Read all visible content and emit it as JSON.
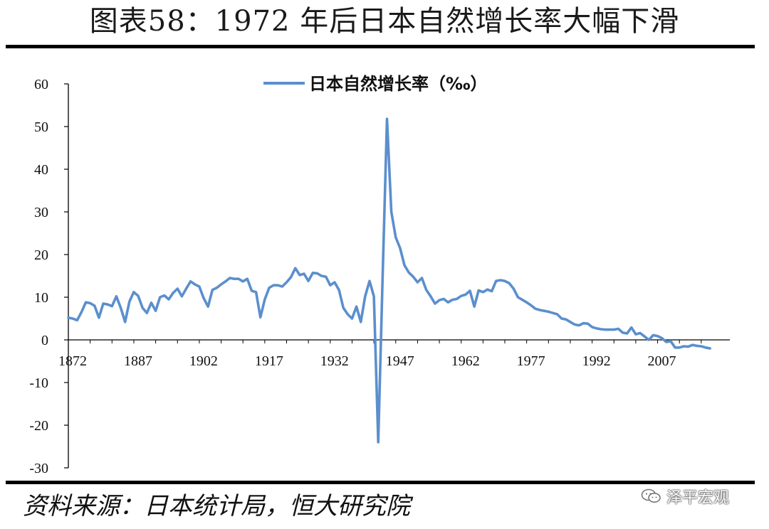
{
  "page": {
    "title": "图表58：1972 年后日本自然增长率大幅下滑",
    "source": "资料来源：日本统计局，恒大研究院",
    "watermark": "泽平宏观",
    "watermark_icon": "wechat-icon"
  },
  "colors": {
    "series": "#5b8fcd",
    "axis": "#000000",
    "rule": "#000000"
  },
  "chart_data": {
    "type": "line",
    "title": "",
    "xlabel": "",
    "ylabel": "",
    "xlim": [
      1872,
      2019
    ],
    "ylim": [
      -30,
      60
    ],
    "grid": false,
    "legend_position": "top-center",
    "x_ticks": [
      "1872",
      "1887",
      "1902",
      "1917",
      "1932",
      "1947",
      "1962",
      "1977",
      "1992",
      "2007"
    ],
    "y_ticks": [
      "60",
      "50",
      "40",
      "30",
      "20",
      "10",
      "0",
      "-10",
      "-20",
      "-30"
    ],
    "series": [
      {
        "name": "日本自然增长率（‰）",
        "x": [
          1872,
          1873,
          1874,
          1875,
          1876,
          1877,
          1878,
          1879,
          1880,
          1881,
          1882,
          1883,
          1884,
          1885,
          1886,
          1887,
          1888,
          1889,
          1890,
          1891,
          1892,
          1893,
          1894,
          1895,
          1896,
          1897,
          1898,
          1899,
          1900,
          1901,
          1902,
          1903,
          1904,
          1905,
          1906,
          1907,
          1908,
          1909,
          1910,
          1911,
          1912,
          1913,
          1914,
          1915,
          1916,
          1917,
          1918,
          1919,
          1920,
          1921,
          1922,
          1923,
          1924,
          1925,
          1926,
          1927,
          1928,
          1929,
          1930,
          1931,
          1932,
          1933,
          1934,
          1935,
          1936,
          1937,
          1938,
          1939,
          1940,
          1941,
          1942,
          1943,
          1944,
          1945,
          1946,
          1947,
          1948,
          1949,
          1950,
          1951,
          1952,
          1953,
          1954,
          1955,
          1956,
          1957,
          1958,
          1959,
          1960,
          1961,
          1962,
          1963,
          1964,
          1965,
          1966,
          1967,
          1968,
          1969,
          1970,
          1971,
          1972,
          1973,
          1974,
          1975,
          1976,
          1977,
          1978,
          1979,
          1980,
          1981,
          1982,
          1983,
          1984,
          1985,
          1986,
          1987,
          1988,
          1989,
          1990,
          1991,
          1992,
          1993,
          1994,
          1995,
          1996,
          1997,
          1998,
          1999,
          2000,
          2001,
          2002,
          2003,
          2004,
          2005,
          2006,
          2007,
          2008,
          2009,
          2010,
          2011,
          2012,
          2013,
          2014,
          2015,
          2016,
          2017,
          2018,
          2019
        ],
        "values": [
          5.2,
          5.0,
          4.6,
          6.5,
          8.8,
          8.6,
          8.0,
          5.2,
          8.5,
          8.3,
          7.9,
          10.2,
          7.5,
          4.2,
          9.0,
          11.2,
          10.3,
          7.5,
          6.3,
          8.7,
          6.8,
          10.0,
          10.4,
          9.5,
          11.0,
          12.0,
          10.2,
          12.0,
          13.7,
          13.0,
          12.5,
          9.8,
          7.8,
          11.7,
          12.2,
          13.0,
          13.7,
          14.5,
          14.3,
          14.3,
          13.7,
          14.3,
          11.5,
          11.2,
          5.3,
          9.5,
          12.2,
          12.8,
          12.8,
          12.5,
          13.5,
          14.7,
          16.8,
          15.2,
          15.5,
          13.8,
          15.7,
          15.6,
          15.0,
          14.8,
          12.8,
          13.5,
          11.7,
          7.5,
          6.0,
          5.0,
          7.8,
          4.2,
          10.2,
          13.8,
          10.2,
          -24.0,
          15.0,
          51.8,
          30.0,
          24.0,
          21.5,
          17.5,
          15.8,
          14.8,
          13.5,
          14.5,
          11.7,
          10.2,
          8.5,
          9.3,
          9.6,
          8.8,
          9.4,
          9.6,
          10.3,
          10.6,
          11.5,
          7.8,
          11.6,
          11.2,
          11.8,
          11.4,
          13.8,
          14.0,
          13.8,
          13.3,
          12.0,
          10.0,
          9.4,
          8.8,
          8.1,
          7.3,
          7.0,
          6.8,
          6.6,
          6.3,
          6.0,
          5.0,
          4.8,
          4.2,
          3.6,
          3.4,
          3.9,
          3.8,
          3.0,
          2.7,
          2.5,
          2.4,
          2.4,
          2.4,
          2.6,
          1.7,
          1.5,
          2.9,
          1.3,
          1.6,
          0.8,
          0.0,
          1.1,
          0.9,
          0.4,
          -0.5,
          -0.3,
          -1.8,
          -1.8,
          -1.5,
          -1.6,
          -1.2,
          -1.4,
          -1.5,
          -1.8,
          -2.0
        ]
      }
    ]
  }
}
